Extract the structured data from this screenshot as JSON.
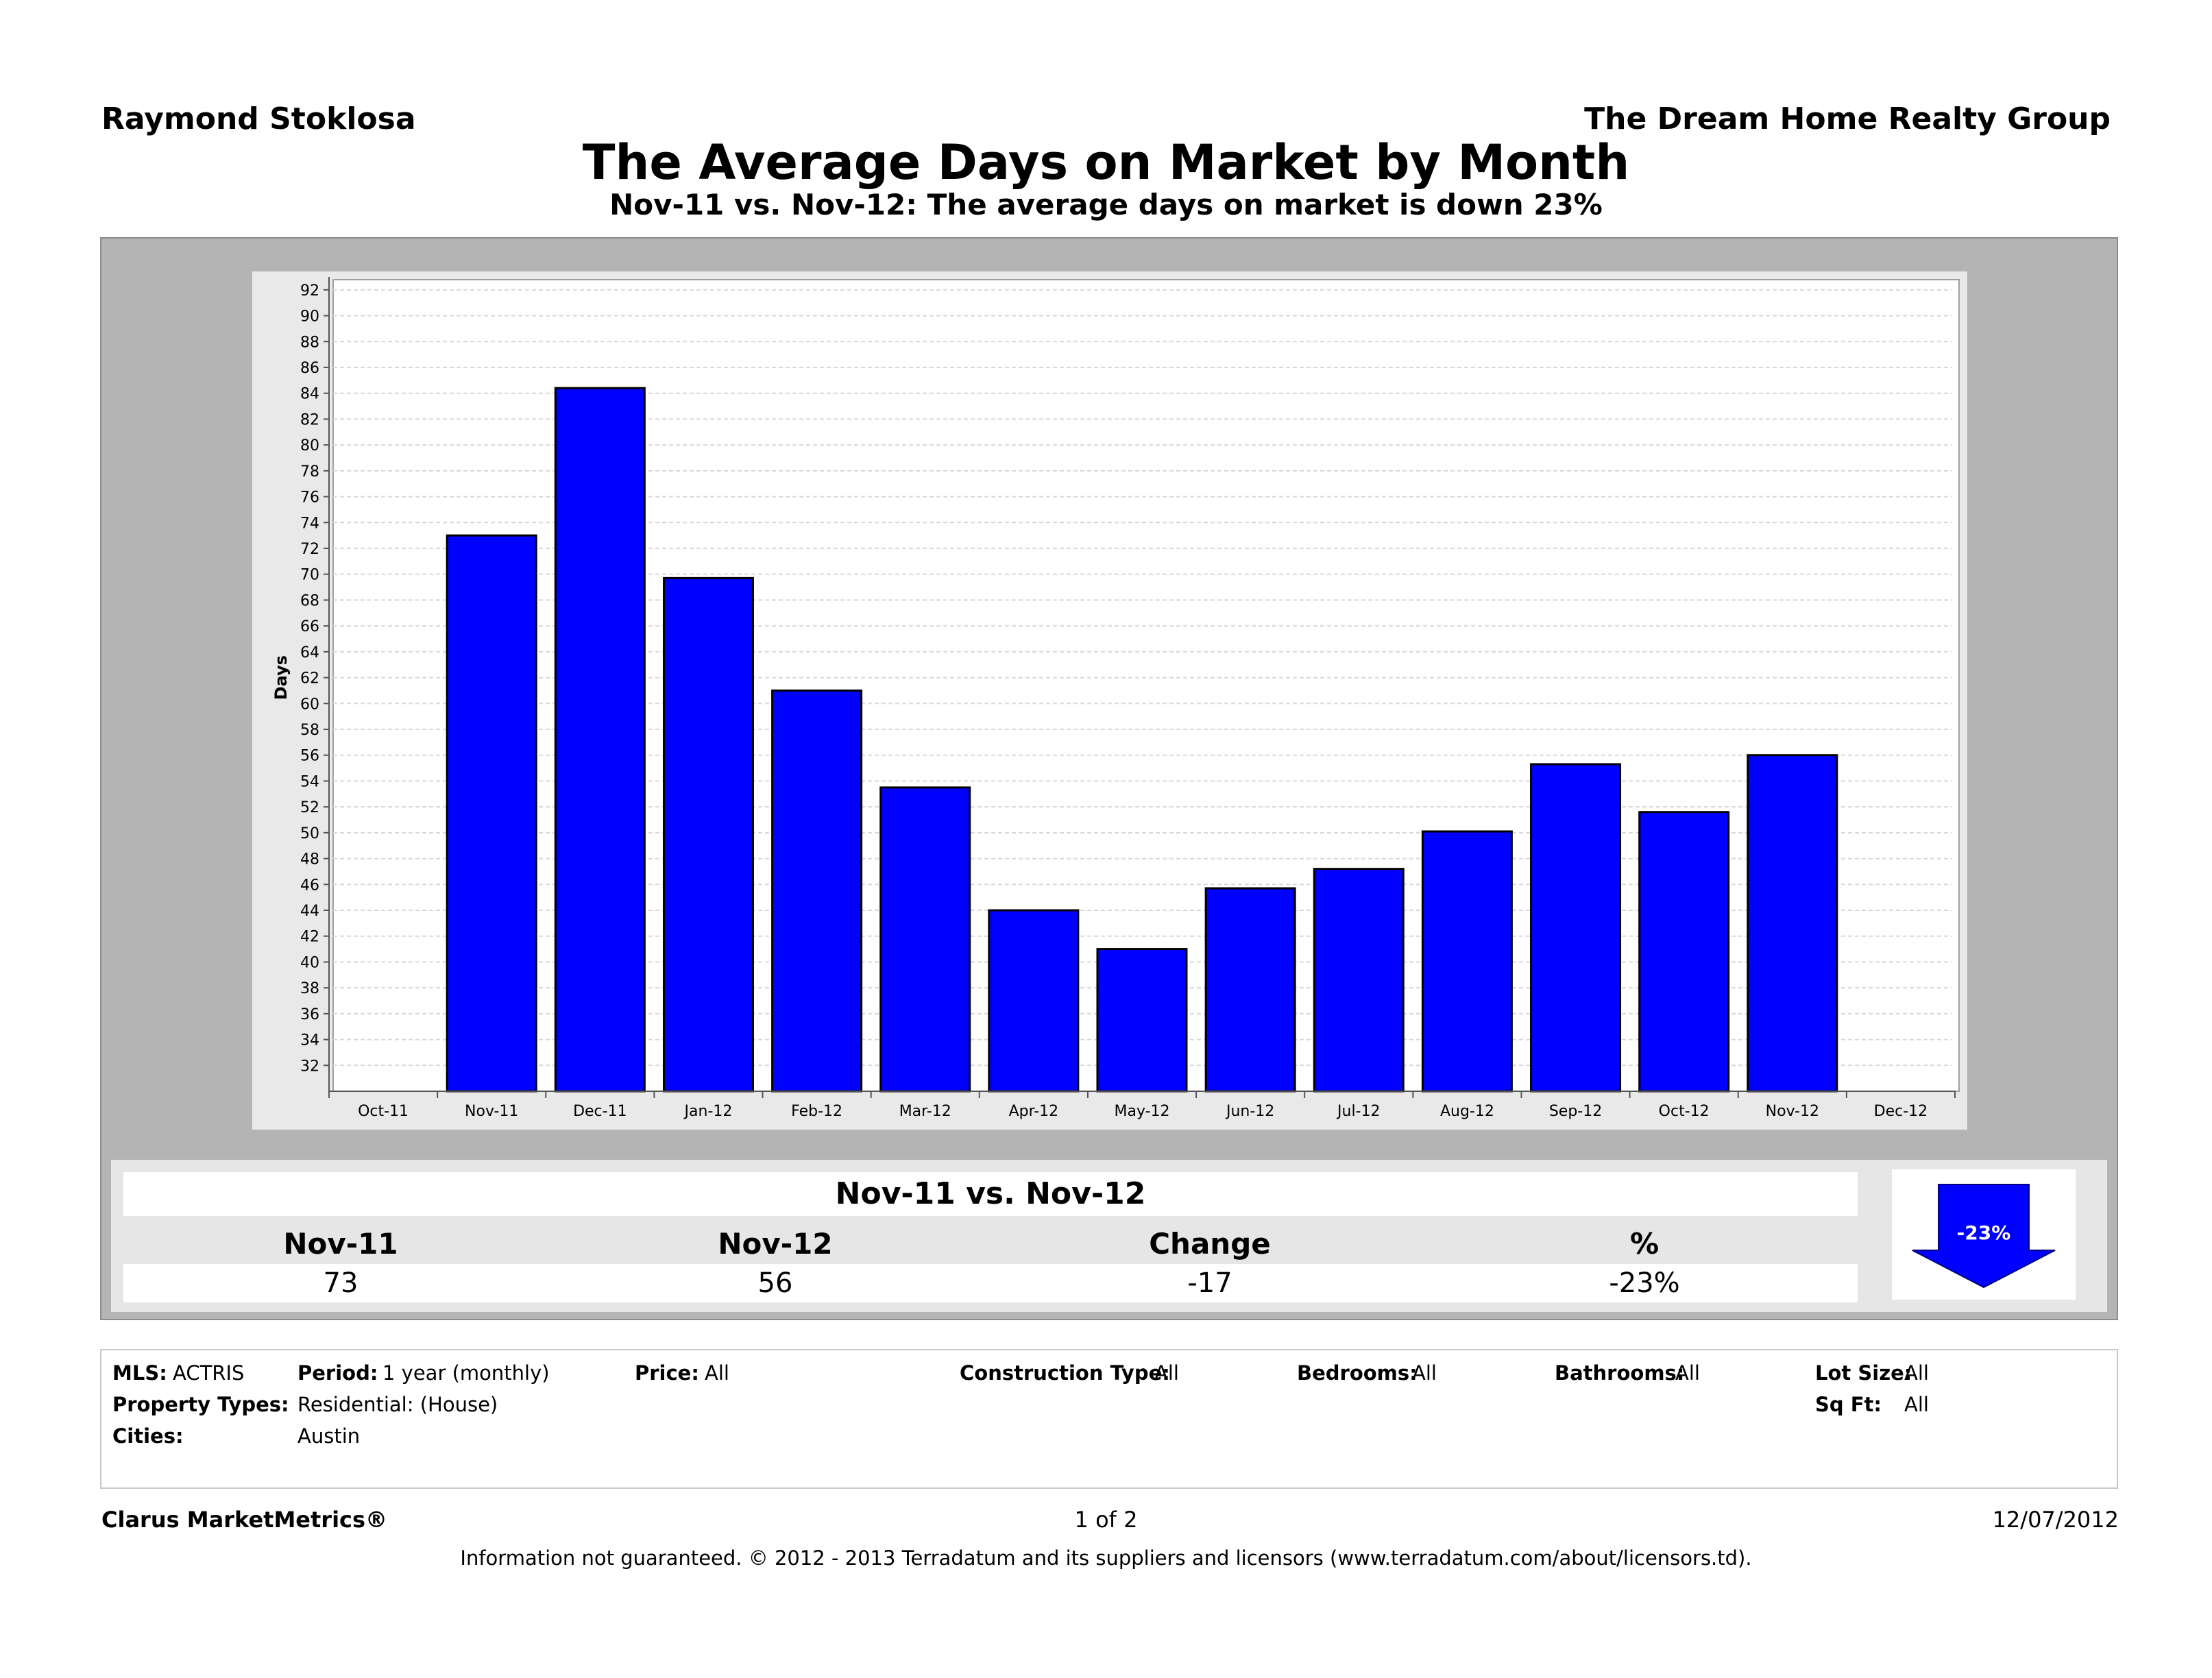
{
  "header": {
    "agent": "Raymond Stoklosa",
    "company": "The Dream Home Realty Group",
    "title": "The Average Days on Market by Month",
    "subtitle": "Nov-11 vs. Nov-12:  The average days on market is down 23%"
  },
  "chart_data": {
    "type": "bar",
    "ylabel": "Days",
    "xlabel": "",
    "ylim": [
      30,
      93
    ],
    "yticks": [
      32,
      34,
      36,
      38,
      40,
      42,
      44,
      46,
      48,
      50,
      52,
      54,
      56,
      58,
      60,
      62,
      64,
      66,
      68,
      70,
      72,
      74,
      76,
      78,
      80,
      82,
      84,
      86,
      88,
      90,
      92
    ],
    "axis_categories": [
      "Oct-11",
      "Nov-11",
      "Dec-11",
      "Jan-12",
      "Feb-12",
      "Mar-12",
      "Apr-12",
      "May-12",
      "Jun-12",
      "Jul-12",
      "Aug-12",
      "Sep-12",
      "Oct-12",
      "Nov-12",
      "Dec-12"
    ],
    "categories": [
      "Nov-11",
      "Dec-11",
      "Jan-12",
      "Feb-12",
      "Mar-12",
      "Apr-12",
      "May-12",
      "Jun-12",
      "Jul-12",
      "Aug-12",
      "Sep-12",
      "Oct-12",
      "Nov-12"
    ],
    "values": [
      73,
      84.4,
      69.7,
      61,
      53.5,
      44,
      41,
      45.7,
      47.2,
      50.1,
      55.3,
      51.6,
      56
    ],
    "bar_color": "#0000ff",
    "grid": true
  },
  "summary": {
    "title": "Nov-11 vs. Nov-12",
    "headers": [
      "Nov-11",
      "Nov-12",
      "Change",
      "%"
    ],
    "values": [
      "73",
      "56",
      "-17",
      "-23%"
    ],
    "badge": "-23%"
  },
  "info": {
    "mls_label": "MLS:",
    "mls_value": "ACTRIS",
    "period_label": "Period:",
    "period_value": "1 year (monthly)",
    "price_label": "Price:",
    "price_value": "All",
    "construction_label": "Construction Type:",
    "construction_value": "All",
    "bedrooms_label": "Bedrooms:",
    "bedrooms_value": "All",
    "bathrooms_label": "Bathrooms:",
    "bathrooms_value": "All",
    "lotsize_label": "Lot Size:",
    "lotsize_value": "All",
    "proptypes_label": "Property Types:",
    "proptypes_value": "Residential: (House)",
    "sqft_label": "Sq Ft:",
    "sqft_value": "All",
    "cities_label": "Cities:",
    "cities_value": "Austin"
  },
  "footer": {
    "brand": "Clarus MarketMetrics®",
    "page": "1 of 2",
    "date": "12/07/2012",
    "disclaimer": "Information not guaranteed.  © 2012 - 2013 Terradatum and its suppliers and licensors (www.terradatum.com/about/licensors.td)."
  }
}
